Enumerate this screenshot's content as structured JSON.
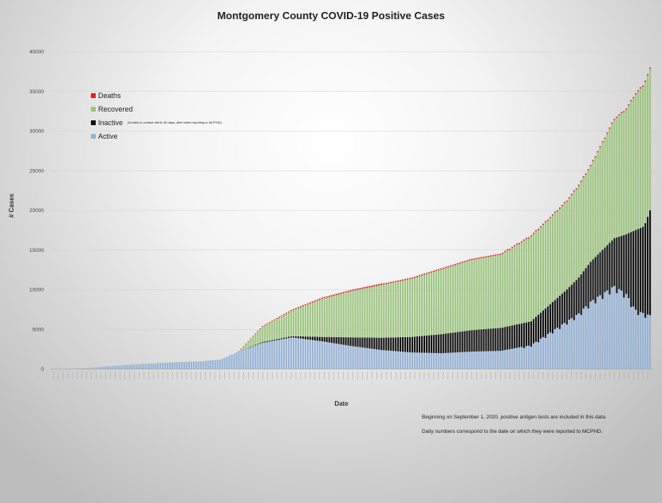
{
  "chart_data": {
    "type": "bar",
    "stacked": true,
    "title": "Montgomery County COVID-19 Positive Cases",
    "xlabel": "Date",
    "ylabel": "# Cases",
    "ylim": [
      0,
      40000
    ],
    "yticks": [
      0,
      5000,
      10000,
      15000,
      20000,
      25000,
      30000,
      35000,
      40000
    ],
    "grid": true,
    "legend_position": "top-left",
    "series": [
      {
        "name": "Deaths",
        "color": "#e02020"
      },
      {
        "name": "Recovered",
        "color": "#9cc57e"
      },
      {
        "name": "Inactive",
        "note": "(Unable to contact within 30 days, after initial reporting to MCPHD)",
        "color": "#111111"
      },
      {
        "name": "Active",
        "color": "#95b3d7"
      }
    ],
    "approx_curves": {
      "description": "Cumulative values read approximately at sampled positions along the x-axis (0 = first date, 1 = last date)",
      "positions": [
        0,
        0.05,
        0.1,
        0.15,
        0.2,
        0.25,
        0.28,
        0.31,
        0.35,
        0.4,
        0.45,
        0.5,
        0.55,
        0.6,
        0.65,
        0.7,
        0.75,
        0.8,
        0.83,
        0.86,
        0.88,
        0.9,
        0.92,
        0.94,
        0.96,
        0.975,
        0.99,
        1
      ],
      "total": [
        0,
        100,
        400,
        650,
        850,
        1000,
        1200,
        2200,
        5400,
        7500,
        9000,
        10000,
        10800,
        11600,
        12800,
        14000,
        14700,
        17000,
        19200,
        21500,
        23500,
        26000,
        29000,
        32000,
        33300,
        35200,
        36500,
        38500
      ],
      "active": [
        0,
        100,
        400,
        650,
        850,
        1000,
        1200,
        2200,
        3300,
        4000,
        3500,
        2900,
        2400,
        2100,
        2000,
        2200,
        2300,
        3000,
        4500,
        6000,
        7000,
        8500,
        9500,
        10500,
        9500,
        7500,
        7000,
        6800
      ],
      "inactive_top": [
        0,
        100,
        400,
        650,
        850,
        1000,
        1200,
        2200,
        3400,
        4150,
        4050,
        4000,
        3950,
        4050,
        4400,
        4900,
        5200,
        6000,
        8000,
        10000,
        11500,
        13500,
        15000,
        16500,
        17000,
        17500,
        18000,
        20000
      ],
      "deaths": [
        0,
        0,
        2,
        5,
        10,
        20,
        30,
        50,
        80,
        120,
        150,
        170,
        200,
        220,
        240,
        260,
        280,
        320,
        360,
        400,
        440,
        480,
        520,
        560,
        600,
        630,
        660,
        690
      ]
    },
    "annotations": [
      "Beginning on September 1, 2020, positive antigen tests are included in this data.",
      "Daily numbers correspond to the date on which they were reported to MCPHD."
    ]
  }
}
